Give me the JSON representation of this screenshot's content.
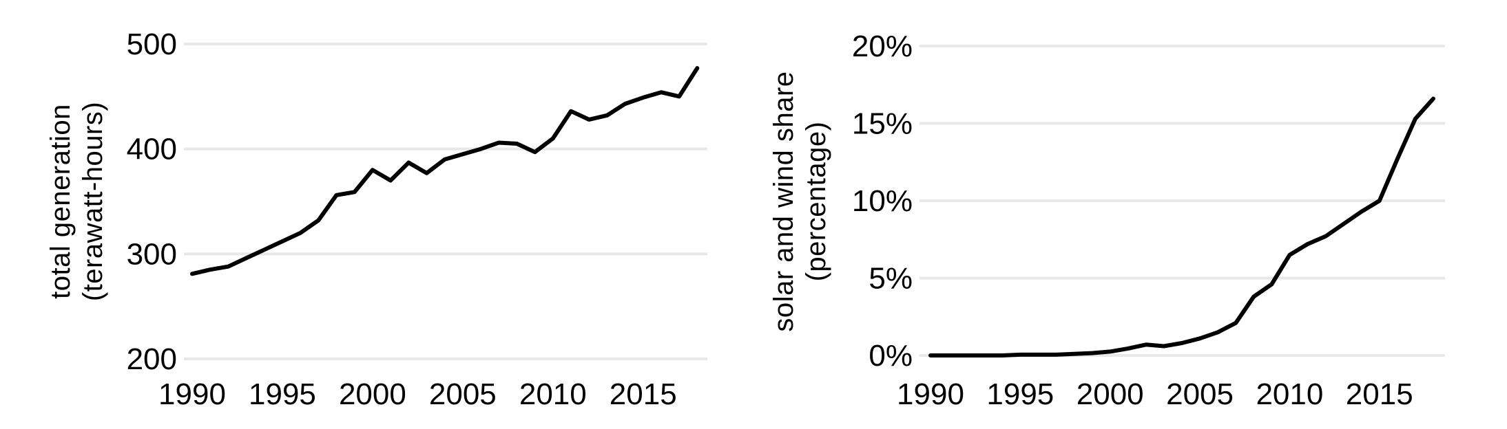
{
  "page_background": "#ffffff",
  "text_color": "#000000",
  "chart_data": [
    {
      "type": "line",
      "title": "",
      "ylabel": [
        "total generation",
        "(terawatt-hours)"
      ],
      "xlabel": "",
      "x": [
        1990,
        1991,
        1992,
        1993,
        1994,
        1995,
        1996,
        1997,
        1998,
        1999,
        2000,
        2001,
        2002,
        2003,
        2004,
        2005,
        2006,
        2007,
        2008,
        2009,
        2010,
        2011,
        2012,
        2013,
        2014,
        2015,
        2016,
        2017,
        2018
      ],
      "values": [
        281,
        285,
        288,
        296,
        304,
        312,
        320,
        332,
        356,
        359,
        380,
        370,
        387,
        377,
        390,
        395,
        400,
        406,
        405,
        397,
        410,
        436,
        428,
        432,
        443,
        449,
        454,
        450,
        477
      ],
      "ylim": [
        200,
        500
      ],
      "yticks": [
        {
          "value": 200,
          "label": "200"
        },
        {
          "value": 300,
          "label": "300"
        },
        {
          "value": 400,
          "label": "400"
        },
        {
          "value": 500,
          "label": "500"
        }
      ],
      "xticks": [
        {
          "value": 1990,
          "label": "1990"
        },
        {
          "value": 1995,
          "label": "1995"
        },
        {
          "value": 2000,
          "label": "2000"
        },
        {
          "value": 2005,
          "label": "2005"
        },
        {
          "value": 2010,
          "label": "2010"
        },
        {
          "value": 2015,
          "label": "2015"
        }
      ],
      "grid": true,
      "legend": null,
      "line_color": "#000000",
      "grid_color": "#e8e8e8"
    },
    {
      "type": "line",
      "title": "",
      "ylabel": [
        "solar and wind share",
        "(percentage)"
      ],
      "xlabel": "",
      "x": [
        1990,
        1991,
        1992,
        1993,
        1994,
        1995,
        1996,
        1997,
        1998,
        1999,
        2000,
        2001,
        2002,
        2003,
        2004,
        2005,
        2006,
        2007,
        2008,
        2009,
        2010,
        2011,
        2012,
        2013,
        2014,
        2015,
        2016,
        2017,
        2018
      ],
      "values": [
        0,
        0,
        0,
        0,
        0,
        0.05,
        0.05,
        0.05,
        0.1,
        0.15,
        0.25,
        0.45,
        0.7,
        0.6,
        0.8,
        1.1,
        1.5,
        2.1,
        3.8,
        4.6,
        6.5,
        7.2,
        7.7,
        8.5,
        9.3,
        10.0,
        12.7,
        15.3,
        16.6
      ],
      "ylim": [
        0,
        20
      ],
      "yticks": [
        {
          "value": 0,
          "label": "0%"
        },
        {
          "value": 5,
          "label": "5%"
        },
        {
          "value": 10,
          "label": "10%"
        },
        {
          "value": 15,
          "label": "15%"
        },
        {
          "value": 20,
          "label": "20%"
        }
      ],
      "xticks": [
        {
          "value": 1990,
          "label": "1990"
        },
        {
          "value": 1995,
          "label": "1995"
        },
        {
          "value": 2000,
          "label": "2000"
        },
        {
          "value": 2005,
          "label": "2005"
        },
        {
          "value": 2010,
          "label": "2010"
        },
        {
          "value": 2015,
          "label": "2015"
        }
      ],
      "grid": true,
      "legend": null,
      "line_color": "#000000",
      "grid_color": "#e8e8e8"
    }
  ]
}
